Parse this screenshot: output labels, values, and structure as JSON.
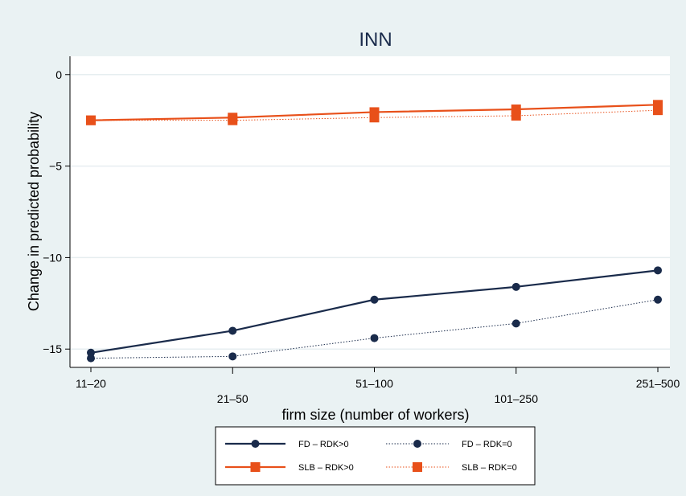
{
  "chart_data": {
    "type": "line",
    "title": "INN",
    "xlabel": "firm size (number of workers)",
    "ylabel": "Change in predicted probability",
    "categories": [
      "11–20",
      "21–50",
      "51–100",
      "101–250",
      "251–500"
    ],
    "ylim": [
      -16,
      1
    ],
    "yticks": [
      0,
      -5,
      -10,
      -15
    ],
    "ytick_labels": [
      "0",
      "−5",
      "−10",
      "−15"
    ],
    "grid": true,
    "legend_position": "bottom",
    "series": [
      {
        "name": "FD – RDK>0",
        "values": [
          -15.2,
          -14.0,
          -12.3,
          -11.6,
          -10.7
        ],
        "color": "#1a2b4b",
        "marker": "circle",
        "style": "solid"
      },
      {
        "name": "FD – RDK=0",
        "values": [
          -15.5,
          -15.4,
          -14.4,
          -13.6,
          -12.3
        ],
        "color": "#1a2b4b",
        "marker": "circle",
        "style": "dotted"
      },
      {
        "name": "SLB – RDK>0",
        "values": [
          -2.5,
          -2.35,
          -2.05,
          -1.9,
          -1.65
        ],
        "color": "#e8501a",
        "marker": "square",
        "style": "solid"
      },
      {
        "name": "SLB – RDK=0",
        "values": [
          -2.5,
          -2.5,
          -2.35,
          -2.25,
          -1.95
        ],
        "color": "#e8501a",
        "marker": "square",
        "style": "dotted"
      }
    ]
  }
}
